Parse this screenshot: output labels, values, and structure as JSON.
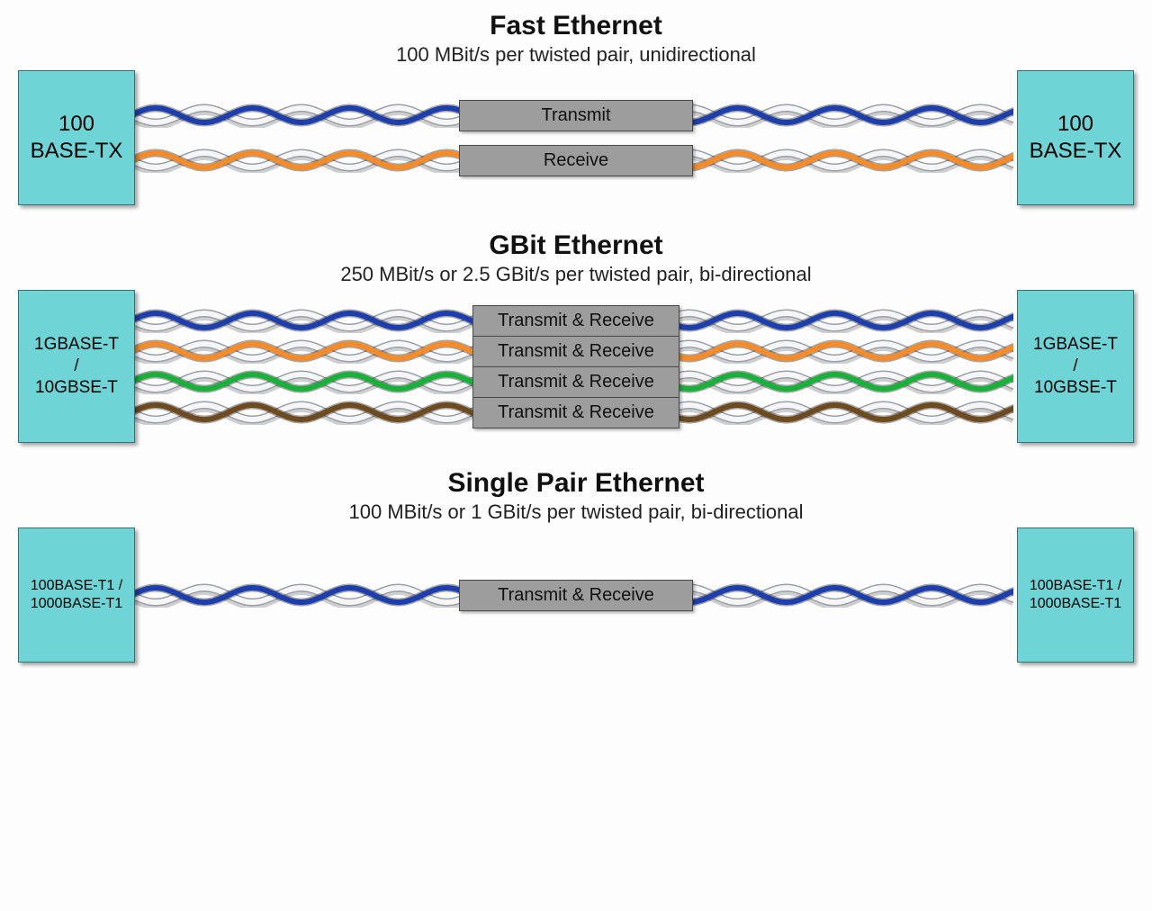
{
  "colors": {
    "connector_bg": "#6fd4d6",
    "connector_border": "#3b6f72",
    "label_bg": "#9d9d9d",
    "label_border": "#4a4a4a",
    "wire_white": "#f6f6f8",
    "wire_stroke": "#9aa0a6",
    "wire_blue": "#1d3fae",
    "wire_orange": "#f78b27",
    "wire_green": "#18b23b",
    "wire_brown": "#6e4a1f"
  },
  "sections": {
    "fast": {
      "title": "Fast Ethernet",
      "subtitle": "100 MBit/s per twisted pair, unidirectional",
      "connector_label": "100\nBASE-TX",
      "connector_height": 150,
      "connector_fontsize": 24,
      "label_width": 260,
      "pairs": [
        {
          "label": "Transmit",
          "color_key": "wire_blue"
        },
        {
          "label": "Receive",
          "color_key": "wire_orange"
        }
      ]
    },
    "gbit": {
      "title": "GBit Ethernet",
      "subtitle": "250 MBit/s or 2.5 GBit/s per twisted pair, bi-directional",
      "connector_label": "1GBASE-T\n/\n10GBSE-T",
      "connector_height": 170,
      "connector_fontsize": 19,
      "label_width": 230,
      "pairs": [
        {
          "label": "Transmit & Receive",
          "color_key": "wire_blue"
        },
        {
          "label": "Transmit & Receive",
          "color_key": "wire_orange"
        },
        {
          "label": "Transmit & Receive",
          "color_key": "wire_green"
        },
        {
          "label": "Transmit & Receive",
          "color_key": "wire_brown"
        }
      ]
    },
    "spe": {
      "title": "Single Pair Ethernet",
      "subtitle": "100 MBit/s or 1 GBit/s per twisted pair, bi-directional",
      "connector_label": "100BASE-T1 /\n1000BASE-T1",
      "connector_height": 150,
      "connector_fontsize": 16,
      "label_width": 260,
      "pairs": [
        {
          "label": "Transmit & Receive",
          "color_key": "wire_blue"
        }
      ]
    }
  }
}
